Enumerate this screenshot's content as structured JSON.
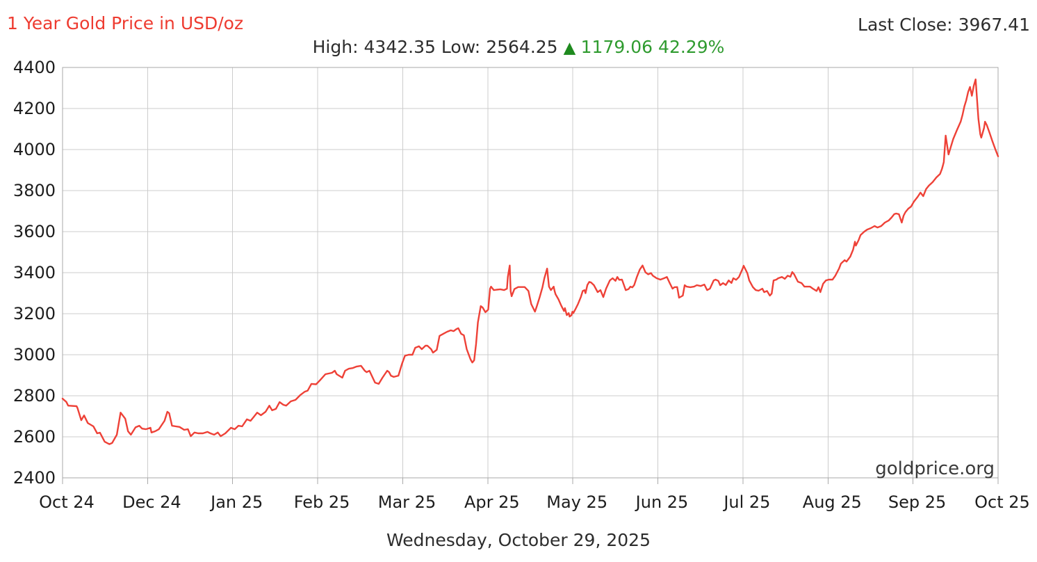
{
  "header": {
    "title": "1 Year Gold Price in USD/oz",
    "last_close_label": "Last Close:",
    "last_close_value": "3967.41",
    "high_label": "High:",
    "high_value": "4342.35",
    "low_label": "Low:",
    "low_value": "2564.25",
    "change_arrow": "▲",
    "change_value": "1179.06",
    "change_percent": "42.29%"
  },
  "watermark": "goldprice.org",
  "footer": {
    "date_text": "Wednesday, October 29, 2025"
  },
  "colors": {
    "accent_red": "#ee3b30",
    "line_red": "#ee4137",
    "positive_green": "#2f9b2f",
    "arrow_green": "#1e8a1e",
    "grid": "#cccccc",
    "border": "#a9a9a9",
    "text_dark": "#1d1d1d",
    "watermark_gray": "#3a3a3a"
  },
  "chart_data": {
    "type": "line",
    "title": "1 Year Gold Price in USD/oz",
    "series_name": "Gold price, USD per ounce",
    "high": 4342.35,
    "low": 2564.25,
    "last_close": 3967.41,
    "change": 1179.06,
    "change_percent": "42.29%",
    "x_tick_labels": [
      "Oct 24",
      "Dec 24",
      "Jan 25",
      "Feb 25",
      "Mar 25",
      "Apr 25",
      "May 25",
      "Jun 25",
      "Jul 25",
      "Aug 25",
      "Sep 25",
      "Oct 25"
    ],
    "y_ticks": [
      2400,
      2600,
      2800,
      3000,
      3200,
      3400,
      3600,
      3800,
      4000,
      4200,
      4400
    ],
    "ylim": [
      2400,
      4400
    ],
    "grid": true,
    "legend": "none",
    "points_format": "[x_fraction_of_axis, price_usd]",
    "points": [
      [
        0.0,
        2786
      ],
      [
        0.004,
        2770
      ],
      [
        0.006,
        2752
      ],
      [
        0.015,
        2749
      ],
      [
        0.016,
        2740
      ],
      [
        0.02,
        2681
      ],
      [
        0.023,
        2704
      ],
      [
        0.027,
        2667
      ],
      [
        0.033,
        2651
      ],
      [
        0.037,
        2617
      ],
      [
        0.04,
        2620
      ],
      [
        0.045,
        2576
      ],
      [
        0.05,
        2564
      ],
      [
        0.053,
        2570
      ],
      [
        0.058,
        2610
      ],
      [
        0.062,
        2718
      ],
      [
        0.067,
        2688
      ],
      [
        0.07,
        2627
      ],
      [
        0.073,
        2610
      ],
      [
        0.078,
        2646
      ],
      [
        0.082,
        2654
      ],
      [
        0.085,
        2640
      ],
      [
        0.089,
        2637
      ],
      [
        0.094,
        2644
      ],
      [
        0.095,
        2621
      ],
      [
        0.099,
        2627
      ],
      [
        0.103,
        2637
      ],
      [
        0.109,
        2678
      ],
      [
        0.112,
        2722
      ],
      [
        0.114,
        2715
      ],
      [
        0.117,
        2654
      ],
      [
        0.121,
        2651
      ],
      [
        0.125,
        2648
      ],
      [
        0.13,
        2634
      ],
      [
        0.134,
        2637
      ],
      [
        0.137,
        2603
      ],
      [
        0.141,
        2621
      ],
      [
        0.145,
        2617
      ],
      [
        0.15,
        2617
      ],
      [
        0.155,
        2624
      ],
      [
        0.158,
        2617
      ],
      [
        0.162,
        2610
      ],
      [
        0.166,
        2621
      ],
      [
        0.169,
        2603
      ],
      [
        0.174,
        2617
      ],
      [
        0.18,
        2644
      ],
      [
        0.184,
        2637
      ],
      [
        0.188,
        2654
      ],
      [
        0.192,
        2651
      ],
      [
        0.197,
        2685
      ],
      [
        0.201,
        2678
      ],
      [
        0.204,
        2695
      ],
      [
        0.208,
        2718
      ],
      [
        0.212,
        2705
      ],
      [
        0.217,
        2722
      ],
      [
        0.221,
        2752
      ],
      [
        0.224,
        2729
      ],
      [
        0.228,
        2736
      ],
      [
        0.232,
        2769
      ],
      [
        0.236,
        2756
      ],
      [
        0.239,
        2752
      ],
      [
        0.244,
        2773
      ],
      [
        0.249,
        2780
      ],
      [
        0.254,
        2803
      ],
      [
        0.259,
        2820
      ],
      [
        0.262,
        2825
      ],
      [
        0.266,
        2858
      ],
      [
        0.271,
        2856
      ],
      [
        0.275,
        2875
      ],
      [
        0.281,
        2905
      ],
      [
        0.288,
        2912
      ],
      [
        0.291,
        2922
      ],
      [
        0.293,
        2905
      ],
      [
        0.299,
        2888
      ],
      [
        0.302,
        2922
      ],
      [
        0.306,
        2932
      ],
      [
        0.31,
        2935
      ],
      [
        0.314,
        2942
      ],
      [
        0.319,
        2946
      ],
      [
        0.323,
        2922
      ],
      [
        0.325,
        2915
      ],
      [
        0.328,
        2922
      ],
      [
        0.334,
        2864
      ],
      [
        0.338,
        2858
      ],
      [
        0.342,
        2888
      ],
      [
        0.347,
        2922
      ],
      [
        0.349,
        2915
      ],
      [
        0.351,
        2898
      ],
      [
        0.354,
        2892
      ],
      [
        0.359,
        2898
      ],
      [
        0.363,
        2958
      ],
      [
        0.366,
        2995
      ],
      [
        0.37,
        3000
      ],
      [
        0.374,
        3000
      ],
      [
        0.377,
        3034
      ],
      [
        0.381,
        3041
      ],
      [
        0.384,
        3027
      ],
      [
        0.388,
        3044
      ],
      [
        0.39,
        3044
      ],
      [
        0.394,
        3027
      ],
      [
        0.396,
        3010
      ],
      [
        0.4,
        3024
      ],
      [
        0.403,
        3092
      ],
      [
        0.407,
        3102
      ],
      [
        0.411,
        3112
      ],
      [
        0.415,
        3119
      ],
      [
        0.418,
        3115
      ],
      [
        0.421,
        3125
      ],
      [
        0.423,
        3129
      ],
      [
        0.426,
        3102
      ],
      [
        0.429,
        3095
      ],
      [
        0.432,
        3027
      ],
      [
        0.436,
        2978
      ],
      [
        0.438,
        2962
      ],
      [
        0.44,
        2973
      ],
      [
        0.442,
        3051
      ],
      [
        0.444,
        3158
      ],
      [
        0.447,
        3237
      ],
      [
        0.449,
        3230
      ],
      [
        0.452,
        3207
      ],
      [
        0.455,
        3220
      ],
      [
        0.457,
        3322
      ],
      [
        0.458,
        3332
      ],
      [
        0.461,
        3315
      ],
      [
        0.464,
        3317
      ],
      [
        0.468,
        3319
      ],
      [
        0.472,
        3315
      ],
      [
        0.475,
        3322
      ],
      [
        0.476,
        3380
      ],
      [
        0.478,
        3435
      ],
      [
        0.479,
        3310
      ],
      [
        0.48,
        3285
      ],
      [
        0.483,
        3320
      ],
      [
        0.487,
        3330
      ],
      [
        0.49,
        3330
      ],
      [
        0.494,
        3330
      ],
      [
        0.498,
        3311
      ],
      [
        0.501,
        3247
      ],
      [
        0.505,
        3210
      ],
      [
        0.507,
        3237
      ],
      [
        0.51,
        3281
      ],
      [
        0.513,
        3329
      ],
      [
        0.515,
        3373
      ],
      [
        0.518,
        3420
      ],
      [
        0.519,
        3373
      ],
      [
        0.52,
        3332
      ],
      [
        0.522,
        3315
      ],
      [
        0.525,
        3332
      ],
      [
        0.526,
        3310
      ],
      [
        0.527,
        3295
      ],
      [
        0.53,
        3271
      ],
      [
        0.533,
        3240
      ],
      [
        0.536,
        3213
      ],
      [
        0.537,
        3227
      ],
      [
        0.539,
        3193
      ],
      [
        0.541,
        3203
      ],
      [
        0.542,
        3186
      ],
      [
        0.544,
        3193
      ],
      [
        0.545,
        3210
      ],
      [
        0.546,
        3203
      ],
      [
        0.548,
        3220
      ],
      [
        0.551,
        3247
      ],
      [
        0.554,
        3281
      ],
      [
        0.556,
        3311
      ],
      [
        0.558,
        3315
      ],
      [
        0.559,
        3300
      ],
      [
        0.561,
        3340
      ],
      [
        0.563,
        3355
      ],
      [
        0.565,
        3352
      ],
      [
        0.568,
        3339
      ],
      [
        0.572,
        3305
      ],
      [
        0.575,
        3315
      ],
      [
        0.578,
        3281
      ],
      [
        0.581,
        3322
      ],
      [
        0.585,
        3362
      ],
      [
        0.588,
        3373
      ],
      [
        0.591,
        3360
      ],
      [
        0.593,
        3379
      ],
      [
        0.595,
        3365
      ],
      [
        0.598,
        3366
      ],
      [
        0.602,
        3315
      ],
      [
        0.605,
        3320
      ],
      [
        0.607,
        3332
      ],
      [
        0.609,
        3328
      ],
      [
        0.611,
        3339
      ],
      [
        0.614,
        3380
      ],
      [
        0.617,
        3415
      ],
      [
        0.62,
        3435
      ],
      [
        0.623,
        3402
      ],
      [
        0.626,
        3392
      ],
      [
        0.629,
        3398
      ],
      [
        0.631,
        3385
      ],
      [
        0.635,
        3373
      ],
      [
        0.639,
        3366
      ],
      [
        0.643,
        3373
      ],
      [
        0.646,
        3379
      ],
      [
        0.649,
        3349
      ],
      [
        0.652,
        3322
      ],
      [
        0.654,
        3329
      ],
      [
        0.657,
        3330
      ],
      [
        0.659,
        3278
      ],
      [
        0.663,
        3288
      ],
      [
        0.665,
        3339
      ],
      [
        0.667,
        3332
      ],
      [
        0.671,
        3329
      ],
      [
        0.675,
        3332
      ],
      [
        0.678,
        3339
      ],
      [
        0.682,
        3335
      ],
      [
        0.686,
        3342
      ],
      [
        0.689,
        3315
      ],
      [
        0.692,
        3322
      ],
      [
        0.696,
        3362
      ],
      [
        0.698,
        3366
      ],
      [
        0.701,
        3360
      ],
      [
        0.703,
        3339
      ],
      [
        0.706,
        3349
      ],
      [
        0.709,
        3340
      ],
      [
        0.712,
        3362
      ],
      [
        0.715,
        3350
      ],
      [
        0.717,
        3373
      ],
      [
        0.72,
        3365
      ],
      [
        0.723,
        3379
      ],
      [
        0.727,
        3420
      ],
      [
        0.728,
        3434
      ],
      [
        0.732,
        3397
      ],
      [
        0.734,
        3362
      ],
      [
        0.738,
        3329
      ],
      [
        0.741,
        3315
      ],
      [
        0.744,
        3312
      ],
      [
        0.748,
        3322
      ],
      [
        0.75,
        3305
      ],
      [
        0.753,
        3311
      ],
      [
        0.756,
        3288
      ],
      [
        0.758,
        3298
      ],
      [
        0.76,
        3362
      ],
      [
        0.763,
        3366
      ],
      [
        0.765,
        3373
      ],
      [
        0.769,
        3379
      ],
      [
        0.772,
        3370
      ],
      [
        0.775,
        3385
      ],
      [
        0.778,
        3380
      ],
      [
        0.78,
        3403
      ],
      [
        0.782,
        3392
      ],
      [
        0.786,
        3356
      ],
      [
        0.79,
        3349
      ],
      [
        0.793,
        3332
      ],
      [
        0.799,
        3332
      ],
      [
        0.802,
        3322
      ],
      [
        0.806,
        3311
      ],
      [
        0.808,
        3329
      ],
      [
        0.81,
        3305
      ],
      [
        0.813,
        3346
      ],
      [
        0.816,
        3362
      ],
      [
        0.819,
        3366
      ],
      [
        0.823,
        3366
      ],
      [
        0.826,
        3385
      ],
      [
        0.83,
        3420
      ],
      [
        0.832,
        3444
      ],
      [
        0.836,
        3461
      ],
      [
        0.838,
        3454
      ],
      [
        0.842,
        3478
      ],
      [
        0.845,
        3512
      ],
      [
        0.847,
        3551
      ],
      [
        0.848,
        3532
      ],
      [
        0.851,
        3559
      ],
      [
        0.853,
        3583
      ],
      [
        0.857,
        3600
      ],
      [
        0.86,
        3610
      ],
      [
        0.864,
        3617
      ],
      [
        0.868,
        3627
      ],
      [
        0.871,
        3620
      ],
      [
        0.875,
        3627
      ],
      [
        0.879,
        3644
      ],
      [
        0.883,
        3654
      ],
      [
        0.886,
        3668
      ],
      [
        0.889,
        3685
      ],
      [
        0.891,
        3688
      ],
      [
        0.894,
        3685
      ],
      [
        0.897,
        3644
      ],
      [
        0.899,
        3678
      ],
      [
        0.901,
        3695
      ],
      [
        0.904,
        3712
      ],
      [
        0.907,
        3722
      ],
      [
        0.91,
        3746
      ],
      [
        0.914,
        3769
      ],
      [
        0.917,
        3790
      ],
      [
        0.92,
        3773
      ],
      [
        0.923,
        3807
      ],
      [
        0.926,
        3824
      ],
      [
        0.93,
        3841
      ],
      [
        0.934,
        3864
      ],
      [
        0.938,
        3881
      ],
      [
        0.94,
        3905
      ],
      [
        0.941,
        3922
      ],
      [
        0.942,
        3939
      ],
      [
        0.944,
        4068
      ],
      [
        0.947,
        3976
      ],
      [
        0.949,
        4006
      ],
      [
        0.952,
        4051
      ],
      [
        0.956,
        4095
      ],
      [
        0.96,
        4136
      ],
      [
        0.962,
        4170
      ],
      [
        0.964,
        4210
      ],
      [
        0.966,
        4240
      ],
      [
        0.968,
        4280
      ],
      [
        0.97,
        4305
      ],
      [
        0.972,
        4262
      ],
      [
        0.974,
        4310
      ],
      [
        0.976,
        4342
      ],
      [
        0.977,
        4280
      ],
      [
        0.979,
        4150
      ],
      [
        0.981,
        4075
      ],
      [
        0.982,
        4058
      ],
      [
        0.985,
        4105
      ],
      [
        0.986,
        4136
      ],
      [
        0.988,
        4119
      ],
      [
        0.991,
        4080
      ],
      [
        0.994,
        4040
      ],
      [
        0.997,
        4002
      ],
      [
        1.0,
        3967
      ]
    ]
  }
}
